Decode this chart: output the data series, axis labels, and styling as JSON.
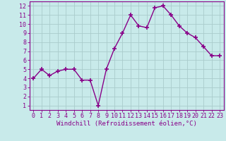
{
  "x": [
    0,
    1,
    2,
    3,
    4,
    5,
    6,
    7,
    8,
    9,
    10,
    11,
    12,
    13,
    14,
    15,
    16,
    17,
    18,
    19,
    20,
    21,
    22,
    23
  ],
  "y": [
    4.0,
    5.0,
    4.3,
    4.8,
    5.0,
    5.0,
    3.8,
    3.8,
    1.0,
    5.0,
    7.3,
    9.0,
    11.0,
    9.8,
    9.6,
    11.8,
    12.0,
    11.0,
    9.8,
    9.0,
    8.5,
    7.5,
    6.5,
    6.5
  ],
  "line_color": "#880088",
  "marker": "+",
  "marker_size": 5,
  "marker_linewidth": 1.2,
  "bg_color": "#c8eaea",
  "grid_color": "#aacccc",
  "xlabel": "Windchill (Refroidissement éolien,°C)",
  "xlim_min": -0.5,
  "xlim_max": 23.5,
  "ylim_min": 0.5,
  "ylim_max": 12.5,
  "xticks": [
    0,
    1,
    2,
    3,
    4,
    5,
    6,
    7,
    8,
    9,
    10,
    11,
    12,
    13,
    14,
    15,
    16,
    17,
    18,
    19,
    20,
    21,
    22,
    23
  ],
  "yticks": [
    1,
    2,
    3,
    4,
    5,
    6,
    7,
    8,
    9,
    10,
    11,
    12
  ],
  "tick_color": "#880088",
  "label_color": "#880088",
  "spine_color": "#880088",
  "xlabel_fontsize": 6.5,
  "tick_fontsize": 6.0,
  "linewidth": 1.0
}
